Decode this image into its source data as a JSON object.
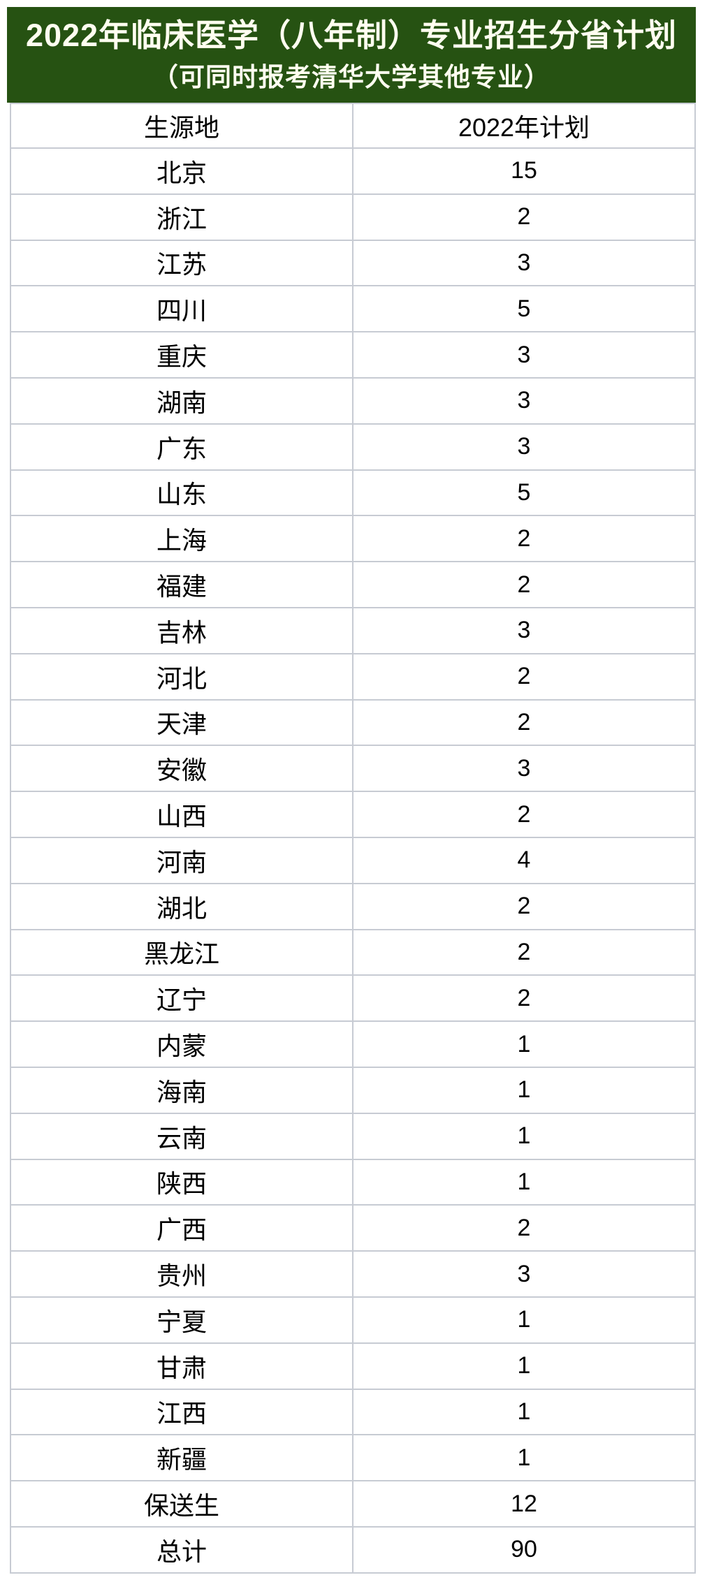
{
  "banner": {
    "title_line1": "2022年临床医学（八年制）专业招生分省计划",
    "title_line2": "（可同时报考清华大学其他专业）"
  },
  "table": {
    "headers": [
      "生源地",
      "2022年计划"
    ],
    "rows": [
      {
        "province": "北京",
        "plan": "15"
      },
      {
        "province": "浙江",
        "plan": "2"
      },
      {
        "province": "江苏",
        "plan": "3"
      },
      {
        "province": "四川",
        "plan": "5"
      },
      {
        "province": "重庆",
        "plan": "3"
      },
      {
        "province": "湖南",
        "plan": "3"
      },
      {
        "province": "广东",
        "plan": "3"
      },
      {
        "province": "山东",
        "plan": "5"
      },
      {
        "province": "上海",
        "plan": "2"
      },
      {
        "province": "福建",
        "plan": "2"
      },
      {
        "province": "吉林",
        "plan": "3"
      },
      {
        "province": "河北",
        "plan": "2"
      },
      {
        "province": "天津",
        "plan": "2"
      },
      {
        "province": "安徽",
        "plan": "3"
      },
      {
        "province": "山西",
        "plan": "2"
      },
      {
        "province": "河南",
        "plan": "4"
      },
      {
        "province": "湖北",
        "plan": "2"
      },
      {
        "province": "黑龙江",
        "plan": "2"
      },
      {
        "province": "辽宁",
        "plan": "2"
      },
      {
        "province": "内蒙",
        "plan": "1"
      },
      {
        "province": "海南",
        "plan": "1"
      },
      {
        "province": "云南",
        "plan": "1"
      },
      {
        "province": "陕西",
        "plan": "1"
      },
      {
        "province": "广西",
        "plan": "2"
      },
      {
        "province": "贵州",
        "plan": "3"
      },
      {
        "province": "宁夏",
        "plan": "1"
      },
      {
        "province": "甘肃",
        "plan": "1"
      },
      {
        "province": "江西",
        "plan": "1"
      },
      {
        "province": "新疆",
        "plan": "1"
      },
      {
        "province": "保送生",
        "plan": "12"
      },
      {
        "province": "总计",
        "plan": "90"
      }
    ]
  },
  "colors": {
    "banner_background": "#265212",
    "banner_text": "#fffef0",
    "grid_line": "#c7cbd3",
    "accent_bar": "#0a0a0a",
    "cell_text": "#000000"
  },
  "chart_data": {
    "type": "table",
    "title": "2022年临床医学（八年制）专业招生分省计划",
    "subtitle": "（可同时报考清华大学其他专业）",
    "columns": [
      "生源地",
      "2022年计划"
    ],
    "categories": [
      "北京",
      "浙江",
      "江苏",
      "四川",
      "重庆",
      "湖南",
      "广东",
      "山东",
      "上海",
      "福建",
      "吉林",
      "河北",
      "天津",
      "安徽",
      "山西",
      "河南",
      "湖北",
      "黑龙江",
      "辽宁",
      "内蒙",
      "海南",
      "云南",
      "陕西",
      "广西",
      "贵州",
      "宁夏",
      "甘肃",
      "江西",
      "新疆",
      "保送生",
      "总计"
    ],
    "values": [
      15,
      2,
      3,
      5,
      3,
      3,
      3,
      5,
      2,
      2,
      3,
      2,
      2,
      3,
      2,
      4,
      2,
      2,
      2,
      1,
      1,
      1,
      1,
      2,
      3,
      1,
      1,
      1,
      1,
      12,
      90
    ],
    "layout": "two-column table, header row + 31 data rows, gridlines on, values centered"
  }
}
